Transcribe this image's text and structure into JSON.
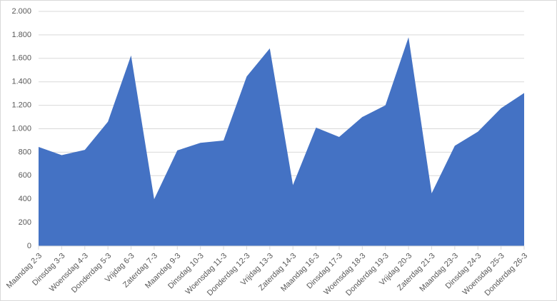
{
  "chart_data": {
    "type": "area",
    "color": "#4472c4",
    "categories": [
      "Maandag 2-3",
      "Dinsdag 3-3",
      "Woensdag 4-3",
      "Donderdag 5-3",
      "Vrijdag 6-3",
      "Zaterdag 7-3",
      "Maandag 9-3",
      "Dinsdag 10-3",
      "Woensdag 11-3",
      "Donderdag 12-3",
      "Vrijdag 13-3",
      "Zaterdag 14-3",
      "Maandag 16-3",
      "Dinsdag 17-3",
      "Woensdag 18-3",
      "Donderdag 19-3",
      "Vrijdag 20-3",
      "Zaterdag 21-3",
      "Maandag 23-3",
      "Dinsdag 24-3",
      "Woensdag 25-3",
      "Donderdag 26-3"
    ],
    "values": [
      845,
      775,
      820,
      1060,
      1625,
      400,
      815,
      880,
      900,
      1445,
      1685,
      520,
      1010,
      930,
      1100,
      1200,
      1780,
      450,
      855,
      975,
      1175,
      1305
    ],
    "ylim": [
      0,
      2000
    ],
    "yticks": [
      0,
      200,
      400,
      600,
      800,
      {
        "value": 1000,
        "label": "1.000"
      },
      {
        "value": 1200,
        "label": "1.200"
      },
      {
        "value": 1400,
        "label": "1.400"
      },
      {
        "value": 1600,
        "label": "1.600"
      },
      {
        "value": 1800,
        "label": "1.800"
      },
      {
        "value": 2000,
        "label": "2.000"
      }
    ],
    "grid": true
  }
}
